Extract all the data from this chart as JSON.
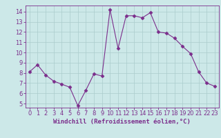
{
  "x": [
    0,
    1,
    2,
    3,
    4,
    5,
    6,
    7,
    8,
    9,
    10,
    11,
    12,
    13,
    14,
    15,
    16,
    17,
    18,
    19,
    20,
    21,
    22,
    23
  ],
  "y": [
    8.1,
    8.8,
    7.8,
    7.2,
    6.9,
    6.6,
    4.8,
    6.3,
    7.9,
    7.7,
    14.2,
    10.4,
    13.6,
    13.6,
    13.4,
    13.9,
    12.0,
    11.9,
    11.4,
    10.6,
    9.9,
    8.1,
    7.0,
    6.7
  ],
  "line_color": "#7B2D8B",
  "marker": "D",
  "marker_size": 2.5,
  "bg_color": "#cce8e8",
  "grid_color": "#aacccc",
  "xlabel": "Windchill (Refroidissement éolien,°C)",
  "ylim": [
    4.6,
    14.6
  ],
  "xlim": [
    -0.5,
    23.5
  ],
  "yticks": [
    5,
    6,
    7,
    8,
    9,
    10,
    11,
    12,
    13,
    14
  ],
  "xticks": [
    0,
    1,
    2,
    3,
    4,
    5,
    6,
    7,
    8,
    9,
    10,
    11,
    12,
    13,
    14,
    15,
    16,
    17,
    18,
    19,
    20,
    21,
    22,
    23
  ],
  "axis_color": "#7B2D8B",
  "label_fontsize": 6.5,
  "tick_fontsize": 6.0
}
